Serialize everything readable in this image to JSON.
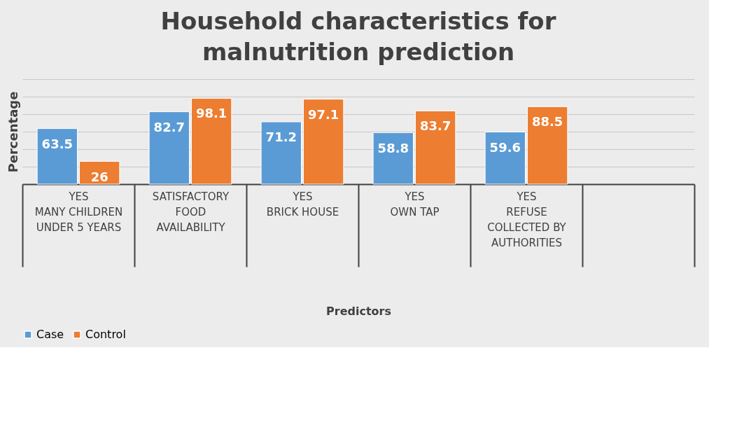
{
  "chart_data": {
    "type": "bar",
    "title": "Household characteristics for malnutrition prediction",
    "xlabel": "Predictors",
    "ylabel": "Percentage",
    "categories": [
      "YES\nMANY CHILDREN UNDER 5 YEARS",
      "SATISFACTORY\nFOOD AVAILABILITY",
      "YES\nBRICK HOUSE",
      "YES\nOWN TAP",
      "YES\nREFUSE COLLECTED BY AUTHORITIES",
      null
    ],
    "series": [
      {
        "name": "Case",
        "color": "#5b9bd5",
        "values": [
          63.5,
          82.7,
          71.2,
          58.8,
          59.6,
          null
        ]
      },
      {
        "name": "Control",
        "color": "#ed7d31",
        "values": [
          26,
          98.1,
          97.1,
          83.7,
          88.5,
          null
        ]
      }
    ],
    "ylim": [
      0,
      120
    ],
    "yticks": [
      {
        "value": 0,
        "label": null
      },
      {
        "value": 20,
        "label": null
      },
      {
        "value": 40,
        "label": null
      },
      {
        "value": 60,
        "label": null
      },
      {
        "value": 80,
        "label": null
      },
      {
        "value": 100,
        "label": null
      },
      {
        "value": 120,
        "label": null
      }
    ],
    "tick_labels": "x",
    "grid": "y",
    "legend": "bottom",
    "data_labels": true
  }
}
